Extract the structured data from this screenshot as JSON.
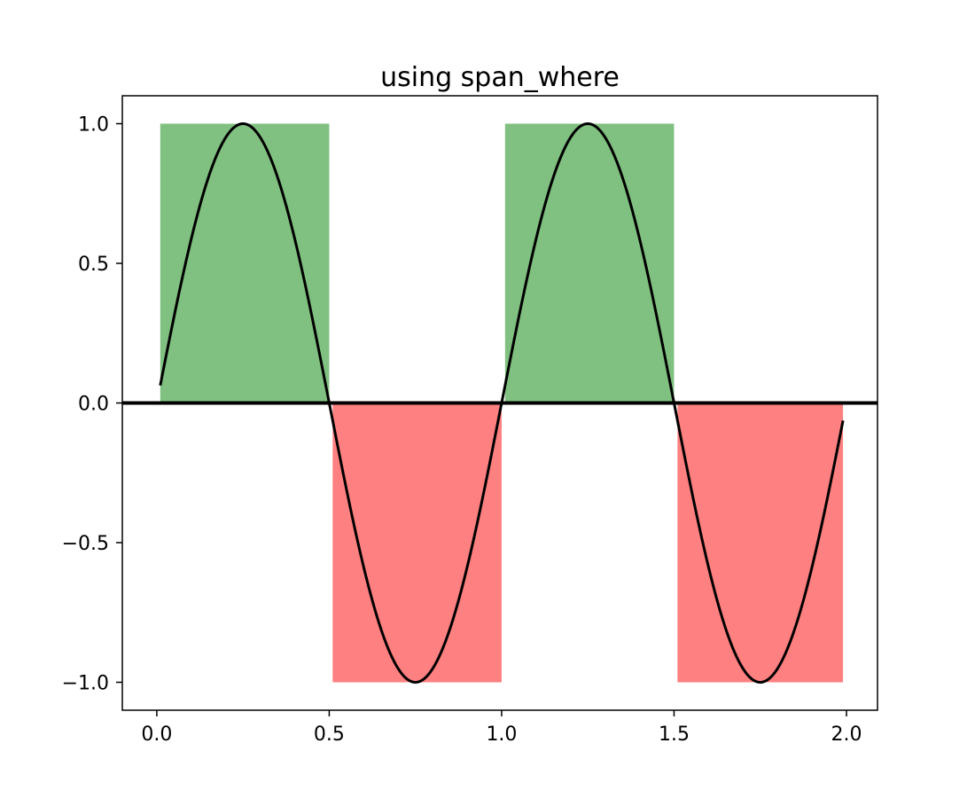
{
  "chart_data": {
    "type": "line",
    "title": "using span_where",
    "xlabel": "",
    "ylabel": "",
    "xlim": [
      -0.1,
      2.09
    ],
    "ylim": [
      -1.1,
      1.1
    ],
    "x_ticks": [
      0.0,
      0.5,
      1.0,
      1.5,
      2.0
    ],
    "y_ticks": [
      -1.0,
      -0.5,
      0.0,
      0.5,
      1.0
    ],
    "x_tick_labels": [
      "0.0",
      "0.5",
      "1.0",
      "1.5",
      "2.0"
    ],
    "y_tick_labels": [
      "−1.0",
      "−0.5",
      "0.0",
      "0.5",
      "1.0"
    ],
    "grid": false,
    "baseline_y": 0.0,
    "series": [
      {
        "function": "sin(2*pi*x)",
        "x_range": [
          0.01,
          1.99
        ],
        "color": "#000000"
      }
    ],
    "spans": [
      {
        "x0": 0.01,
        "x1": 0.5,
        "y0": 0.0,
        "y1": 1.0,
        "color": "#80c080"
      },
      {
        "x0": 1.01,
        "x1": 1.5,
        "y0": 0.0,
        "y1": 1.0,
        "color": "#80c080"
      },
      {
        "x0": 0.51,
        "x1": 1.0,
        "y0": -1.0,
        "y1": 0.0,
        "color": "#ff8080"
      },
      {
        "x0": 1.51,
        "x1": 1.99,
        "y0": -1.0,
        "y1": 0.0,
        "color": "#ff8080"
      }
    ]
  }
}
